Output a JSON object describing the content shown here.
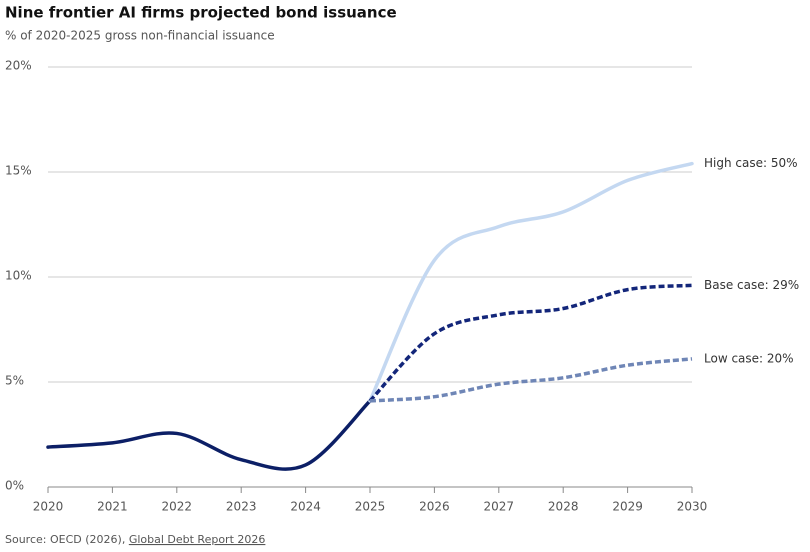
{
  "chart_data": {
    "type": "line",
    "title": "Nine frontier AI firms projected bond issuance",
    "subtitle": "% of 2020-2025 gross non-financial issuance",
    "source": "Source: OECD (2026), ",
    "source_link": "Global Debt Report 2026",
    "grid": true,
    "xlim": [
      2020,
      2030
    ],
    "xticks": [
      2020,
      2021,
      2022,
      2023,
      2024,
      2025,
      2026,
      2027,
      2028,
      2029,
      2030
    ],
    "ylim": [
      0,
      20
    ],
    "yticks": [
      {
        "value": 0,
        "label": "0%"
      },
      {
        "value": 5,
        "label": "5%"
      },
      {
        "value": 10,
        "label": "10%"
      },
      {
        "value": 15,
        "label": "15%"
      },
      {
        "value": 20,
        "label": "20%"
      }
    ],
    "series": [
      {
        "color": "#0c1f66",
        "dashed": false,
        "x": [
          2020,
          2021,
          2022,
          2023,
          2024,
          2025
        ],
        "values": [
          1.9,
          2.1,
          2.55,
          1.3,
          1.05,
          4.1
        ]
      },
      {
        "name": "High case: 50%",
        "color": "#c4d8f1",
        "dashed": false,
        "x": [
          2025,
          2026,
          2027,
          2028,
          2029,
          2030
        ],
        "values": [
          4.1,
          10.8,
          12.4,
          13.1,
          14.6,
          15.4
        ]
      },
      {
        "name": "Base case: 29%",
        "color": "#13267a",
        "dashed": true,
        "x": [
          2025,
          2026,
          2027,
          2028,
          2029,
          2030
        ],
        "values": [
          4.1,
          7.3,
          8.2,
          8.5,
          9.4,
          9.6
        ]
      },
      {
        "name": "Low case: 20%",
        "color": "#6f86b6",
        "dashed": true,
        "x": [
          2025,
          2026,
          2027,
          2028,
          2029,
          2030
        ],
        "values": [
          4.1,
          4.3,
          4.9,
          5.2,
          5.8,
          6.1
        ]
      }
    ]
  }
}
